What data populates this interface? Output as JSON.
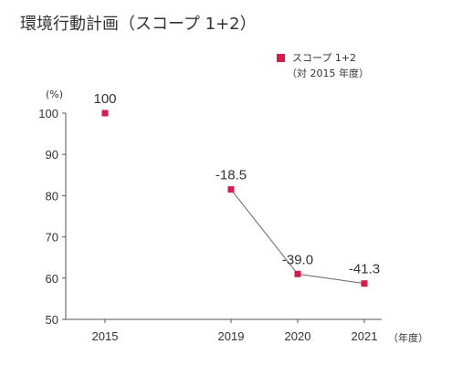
{
  "colors": {
    "accent": "#d51c4a",
    "line": "#666666",
    "axis": "#555555",
    "text": "#333333"
  },
  "chart_data": {
    "type": "scatter",
    "title": "環境行動計画（スコープ 1+2）",
    "legend": {
      "name": "スコープ 1+2",
      "subtitle": "（対 2015 年度）",
      "placement": "top-right"
    },
    "ylabel": "(%)",
    "xlabel": "（年度）",
    "ylim": [
      50,
      100
    ],
    "yticks": [
      "50",
      "60",
      "70",
      "80",
      "90",
      "100"
    ],
    "grid": false,
    "series": [
      {
        "name": "スコープ 1+2",
        "points": [
          {
            "x": "2015",
            "y": 100,
            "label": "100",
            "connected": false
          },
          {
            "x": "2019",
            "y": 81.5,
            "label": "-18.5",
            "connected": true
          },
          {
            "x": "2020",
            "y": 61.0,
            "label": "-39.0",
            "connected": true
          },
          {
            "x": "2021",
            "y": 58.7,
            "label": "-41.3",
            "connected": true
          }
        ]
      }
    ]
  }
}
